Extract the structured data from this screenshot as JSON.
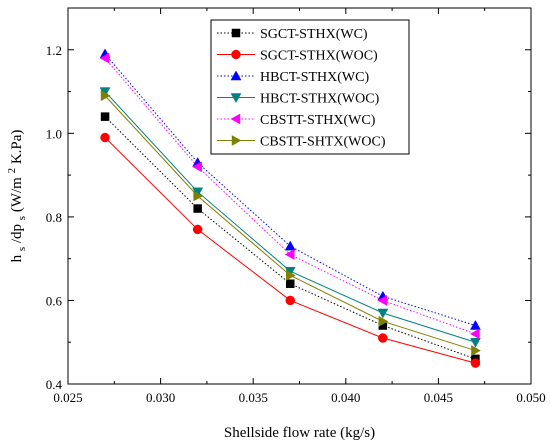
{
  "chart_data": {
    "type": "line",
    "title": "",
    "xlabel": "Shellside flow rate (kg/s)",
    "ylabel": {
      "base": "h",
      "sub1": "s",
      "mid": "/dp",
      "sub2": "s",
      "unit_open": "(W/m",
      "sup": "2",
      "unit_close": "K.Pa)"
    },
    "xlim": [
      0.025,
      0.05
    ],
    "ylim": [
      0.4,
      1.3
    ],
    "x_ticks": [
      {
        "value": 0.025,
        "label": "0.025"
      },
      {
        "value": 0.03,
        "label": "0.030"
      },
      {
        "value": 0.035,
        "label": "0.035"
      },
      {
        "value": 0.04,
        "label": "0.040"
      },
      {
        "value": 0.045,
        "label": "0.045"
      },
      {
        "value": 0.05,
        "label": "0.050"
      }
    ],
    "y_ticks": [
      {
        "value": 0.4,
        "label": "0.4"
      },
      {
        "value": 0.6,
        "label": "0.6"
      },
      {
        "value": 0.8,
        "label": "0.8"
      },
      {
        "value": 1.0,
        "label": "1.0"
      },
      {
        "value": 1.2,
        "label": "1.2"
      }
    ],
    "grid": false,
    "legend_position": "top-right",
    "x": [
      0.027,
      0.032,
      0.037,
      0.042,
      0.047
    ],
    "series": [
      {
        "name": "SGCT-STHX(WC)",
        "values": [
          1.04,
          0.82,
          0.64,
          0.54,
          0.46
        ],
        "color": "#000000",
        "marker": "square",
        "line": "dotted"
      },
      {
        "name": "SGCT-STHX(WOC)",
        "values": [
          0.99,
          0.77,
          0.6,
          0.51,
          0.45
        ],
        "color": "#ff0000",
        "marker": "circle",
        "line": "solid"
      },
      {
        "name": "HBCT-STHX(WC)",
        "values": [
          1.19,
          0.93,
          0.73,
          0.61,
          0.54
        ],
        "color": "#0000ff",
        "marker": "triangle-up",
        "line": "dotted"
      },
      {
        "name": "HBCT-STHX(WOC)",
        "values": [
          1.1,
          0.86,
          0.67,
          0.57,
          0.5
        ],
        "color": "#008080",
        "marker": "triangle-down",
        "line": "solid"
      },
      {
        "name": "CBSTT-STHX(WC)",
        "values": [
          1.18,
          0.92,
          0.71,
          0.6,
          0.52
        ],
        "color": "#ff00ff",
        "marker": "triangle-left",
        "line": "dotted"
      },
      {
        "name": "CBSTT-SHTX(WOC)",
        "values": [
          1.09,
          0.85,
          0.66,
          0.55,
          0.48
        ],
        "color": "#808000",
        "marker": "triangle-right",
        "line": "solid"
      }
    ]
  }
}
